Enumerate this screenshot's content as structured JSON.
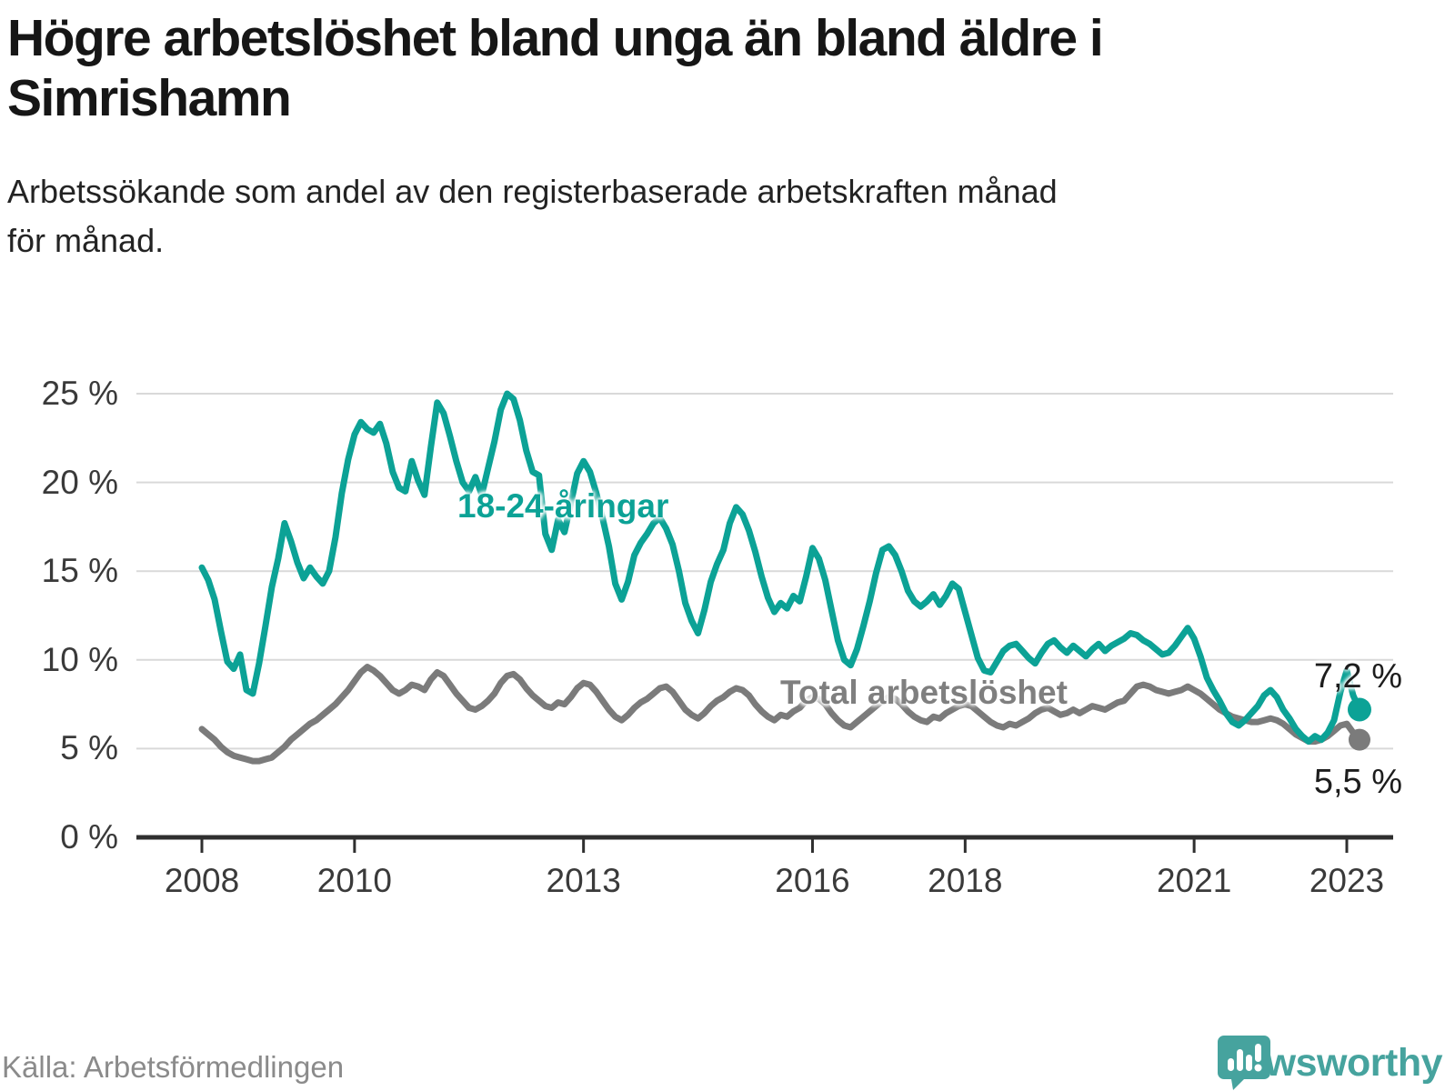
{
  "header": {
    "title_line1": "Högre arbetslöshet bland unga än bland äldre i",
    "title_line2": "Simrishamn",
    "subtitle_line1": "Arbetssökande som andel av den registerbaserade arbetskraften månad",
    "subtitle_line2": "för månad."
  },
  "footer": {
    "source": "Källa: Arbetsförmedlingen",
    "brand": "Newsworthy"
  },
  "colors": {
    "youth_line": "#0ca296",
    "total_line": "#7b7b7b",
    "grid": "#d9d9d9",
    "axis": "#2f2f2f",
    "logo_teal": "#46a39e"
  },
  "chart_data": {
    "type": "line",
    "title": "Högre arbetslöshet bland unga än bland äldre i Simrishamn",
    "subtitle": "Arbetssökande som andel av den registerbaserade arbetskraften månad för månad.",
    "unit": "%",
    "grid": "horizontal",
    "ylim": [
      0,
      25.6
    ],
    "x_start": {
      "year": 2008,
      "month": 1
    },
    "x_end": {
      "year": 2023,
      "month": 3
    },
    "y_ticks": [
      {
        "value": 25,
        "label": "25 %"
      },
      {
        "value": 20,
        "label": "20 %"
      },
      {
        "value": 15,
        "label": "15 %"
      },
      {
        "value": 10,
        "label": "10 %"
      },
      {
        "value": 5,
        "label": "5 %"
      },
      {
        "value": 0,
        "label": "0 %"
      }
    ],
    "x_ticks": [
      {
        "year": 2008,
        "label": "2008"
      },
      {
        "year": 2010,
        "label": "2010"
      },
      {
        "year": 2013,
        "label": "2013"
      },
      {
        "year": 2016,
        "label": "2016"
      },
      {
        "year": 2018,
        "label": "2018"
      },
      {
        "year": 2021,
        "label": "2021"
      },
      {
        "year": 2023,
        "label": "2023"
      }
    ],
    "series": [
      {
        "name": "Total arbetslöshet",
        "color": "#7b7b7b",
        "end_label": "5,5 %",
        "end_value": 5.5,
        "values": [
          6.1,
          5.8,
          5.5,
          5.1,
          4.8,
          4.6,
          4.5,
          4.4,
          4.3,
          4.3,
          4.4,
          4.5,
          4.8,
          5.1,
          5.5,
          5.8,
          6.1,
          6.4,
          6.6,
          6.9,
          7.2,
          7.5,
          7.9,
          8.3,
          8.8,
          9.3,
          9.6,
          9.4,
          9.1,
          8.7,
          8.3,
          8.1,
          8.3,
          8.6,
          8.5,
          8.3,
          8.9,
          9.3,
          9.1,
          8.6,
          8.1,
          7.7,
          7.3,
          7.2,
          7.4,
          7.7,
          8.1,
          8.7,
          9.1,
          9.2,
          8.9,
          8.4,
          8.0,
          7.7,
          7.4,
          7.3,
          7.6,
          7.5,
          7.9,
          8.4,
          8.7,
          8.6,
          8.2,
          7.7,
          7.2,
          6.8,
          6.6,
          6.9,
          7.3,
          7.6,
          7.8,
          8.1,
          8.4,
          8.5,
          8.2,
          7.7,
          7.2,
          6.9,
          6.7,
          7.0,
          7.4,
          7.7,
          7.9,
          8.2,
          8.4,
          8.3,
          8.0,
          7.5,
          7.1,
          6.8,
          6.6,
          6.9,
          6.8,
          7.1,
          7.3,
          7.7,
          7.9,
          7.8,
          7.5,
          7.0,
          6.6,
          6.3,
          6.2,
          6.5,
          6.8,
          7.1,
          7.4,
          7.7,
          7.9,
          7.8,
          7.5,
          7.1,
          6.8,
          6.6,
          6.5,
          6.8,
          6.7,
          7.0,
          7.2,
          7.4,
          7.5,
          7.4,
          7.1,
          6.8,
          6.5,
          6.3,
          6.2,
          6.4,
          6.3,
          6.5,
          6.7,
          7.0,
          7.2,
          7.3,
          7.1,
          6.9,
          7.0,
          7.2,
          7.0,
          7.2,
          7.4,
          7.3,
          7.2,
          7.4,
          7.6,
          7.7,
          8.1,
          8.5,
          8.6,
          8.5,
          8.3,
          8.2,
          8.1,
          8.2,
          8.3,
          8.5,
          8.3,
          8.1,
          7.8,
          7.5,
          7.2,
          7.0,
          6.8,
          6.7,
          6.6,
          6.5,
          6.5,
          6.6,
          6.7,
          6.6,
          6.4,
          6.1,
          5.8,
          5.6,
          5.4,
          5.4,
          5.5,
          5.7,
          6.0,
          6.3,
          6.4,
          5.9,
          5.5
        ]
      },
      {
        "name": "18-24-åringar",
        "color": "#0ca296",
        "end_label": "7,2 %",
        "end_value": 7.2,
        "values": [
          15.2,
          14.5,
          13.4,
          11.6,
          9.9,
          9.5,
          10.3,
          8.3,
          8.1,
          9.8,
          11.9,
          14.1,
          15.7,
          17.7,
          16.7,
          15.5,
          14.6,
          15.2,
          14.7,
          14.3,
          15.0,
          16.9,
          19.4,
          21.3,
          22.7,
          23.4,
          23.0,
          22.8,
          23.3,
          22.2,
          20.6,
          19.7,
          19.5,
          21.2,
          20.1,
          19.3,
          22.0,
          24.5,
          23.9,
          22.6,
          21.2,
          20.0,
          19.5,
          20.3,
          19.3,
          20.8,
          22.3,
          24.1,
          25.0,
          24.7,
          23.5,
          21.8,
          20.6,
          20.4,
          17.1,
          16.2,
          17.9,
          17.2,
          18.8,
          20.5,
          21.2,
          20.6,
          19.4,
          18.0,
          16.4,
          14.3,
          13.4,
          14.4,
          15.9,
          16.6,
          17.1,
          17.7,
          18.0,
          17.4,
          16.5,
          15.0,
          13.2,
          12.2,
          11.5,
          12.8,
          14.4,
          15.4,
          16.2,
          17.7,
          18.6,
          18.2,
          17.3,
          16.1,
          14.7,
          13.5,
          12.7,
          13.2,
          12.9,
          13.6,
          13.3,
          14.7,
          16.3,
          15.7,
          14.5,
          12.8,
          11.1,
          10.0,
          9.7,
          10.6,
          11.9,
          13.3,
          14.9,
          16.2,
          16.4,
          15.9,
          15.0,
          13.9,
          13.3,
          13.0,
          13.3,
          13.7,
          13.1,
          13.6,
          14.3,
          14.0,
          12.7,
          11.4,
          10.1,
          9.4,
          9.3,
          9.9,
          10.5,
          10.8,
          10.9,
          10.5,
          10.1,
          9.8,
          10.4,
          10.9,
          11.1,
          10.7,
          10.4,
          10.8,
          10.5,
          10.2,
          10.6,
          10.9,
          10.5,
          10.8,
          11.0,
          11.2,
          11.5,
          11.4,
          11.1,
          10.9,
          10.6,
          10.3,
          10.4,
          10.8,
          11.3,
          11.8,
          11.2,
          10.2,
          9.0,
          8.3,
          7.7,
          7.0,
          6.5,
          6.3,
          6.6,
          7.0,
          7.4,
          8.0,
          8.3,
          7.9,
          7.2,
          6.7,
          6.1,
          5.7,
          5.4,
          5.7,
          5.5,
          5.9,
          6.6,
          8.2,
          9.4,
          8.0,
          7.2
        ]
      }
    ]
  }
}
